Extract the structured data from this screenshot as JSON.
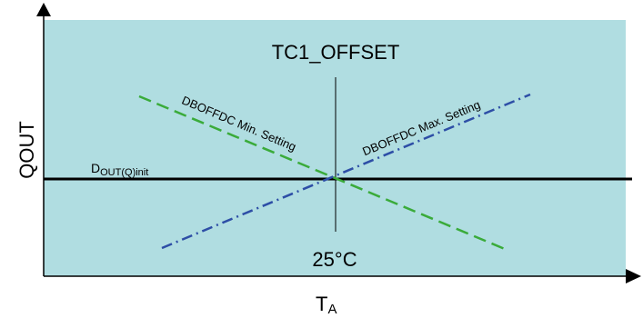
{
  "diagram": {
    "title": "TC1_OFFSET",
    "y_axis_label": "QOUT",
    "x_axis_label_main": "T",
    "x_axis_label_sub": "A",
    "center_label": "25°C",
    "baseline_label_main": "D",
    "baseline_label_sub": "OUT(Q)init",
    "min_line_label": "DBOFFDC Min. Setting",
    "max_line_label": "DBOFFDC Max. Setting",
    "colors": {
      "plot_background": "#b0dde1",
      "min_line": "#3aab3a",
      "max_line": "#2d4ea6",
      "baseline": "#000000"
    }
  }
}
